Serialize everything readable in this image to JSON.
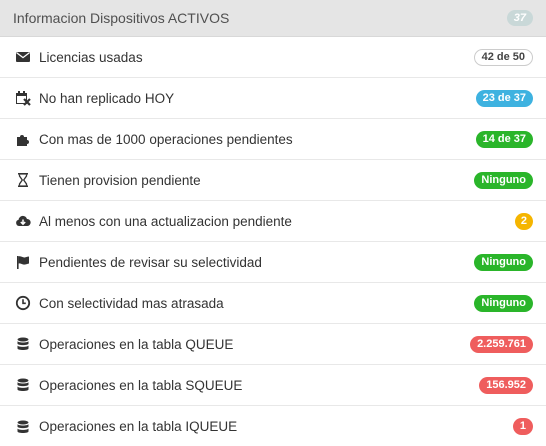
{
  "header": {
    "title": "Informacion Dispositivos ACTIVOS",
    "badge": "37"
  },
  "rows": [
    {
      "label": "Licencias usadas",
      "value": "42 de 50",
      "icon": "envelope-icon"
    },
    {
      "label": "No han replicado HOY",
      "value": "23 de 37",
      "icon": "calendar-x-icon"
    },
    {
      "label": "Con mas de 1000 operaciones pendientes",
      "value": "14 de 37",
      "icon": "puzzle-icon"
    },
    {
      "label": "Tienen provision pendiente",
      "value": "Ninguno",
      "icon": "hourglass-icon"
    },
    {
      "label": "Al menos con una actualizacion pendiente",
      "value": "2",
      "icon": "cloud-download-icon"
    },
    {
      "label": "Pendientes de revisar su selectividad",
      "value": "Ninguno",
      "icon": "flag-icon"
    },
    {
      "label": "Con selectividad mas atrasada",
      "value": "Ninguno",
      "icon": "clock-icon"
    },
    {
      "label": "Operaciones en la tabla QUEUE",
      "value": "2.259.761",
      "icon": "database-icon"
    },
    {
      "label": "Operaciones en la tabla SQUEUE",
      "value": "156.952",
      "icon": "database-icon"
    },
    {
      "label": "Operaciones en la tabla IQUEUE",
      "value": "1",
      "icon": "database-icon"
    }
  ],
  "colors": {
    "blue": "#3eb2e0",
    "green": "#2ab52a",
    "yellow": "#f5b500",
    "red": "#ef5d5d",
    "header_bg": "#e5e5e5"
  }
}
